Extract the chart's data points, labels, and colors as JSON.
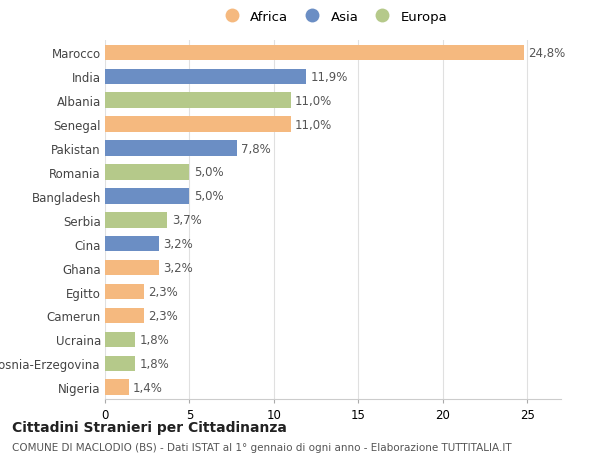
{
  "countries": [
    "Marocco",
    "India",
    "Albania",
    "Senegal",
    "Pakistan",
    "Romania",
    "Bangladesh",
    "Serbia",
    "Cina",
    "Ghana",
    "Egitto",
    "Camerun",
    "Ucraina",
    "Bosnia-Erzegovina",
    "Nigeria"
  ],
  "values": [
    24.8,
    11.9,
    11.0,
    11.0,
    7.8,
    5.0,
    5.0,
    3.7,
    3.2,
    3.2,
    2.3,
    2.3,
    1.8,
    1.8,
    1.4
  ],
  "labels": [
    "24,8%",
    "11,9%",
    "11,0%",
    "11,0%",
    "7,8%",
    "5,0%",
    "5,0%",
    "3,7%",
    "3,2%",
    "3,2%",
    "2,3%",
    "2,3%",
    "1,8%",
    "1,8%",
    "1,4%"
  ],
  "continents": [
    "Africa",
    "Asia",
    "Europa",
    "Africa",
    "Asia",
    "Europa",
    "Asia",
    "Europa",
    "Asia",
    "Africa",
    "Africa",
    "Africa",
    "Europa",
    "Europa",
    "Africa"
  ],
  "colors": {
    "Africa": "#F5B97F",
    "Asia": "#6B8EC4",
    "Europa": "#B5C98A"
  },
  "xlim": [
    0,
    27
  ],
  "xticks": [
    0,
    5,
    10,
    15,
    20,
    25
  ],
  "title": "Cittadini Stranieri per Cittadinanza",
  "subtitle": "COMUNE DI MACLODIO (BS) - Dati ISTAT al 1° gennaio di ogni anno - Elaborazione TUTTITALIA.IT",
  "bg_color": "#ffffff",
  "grid_color": "#e0e0e0",
  "bar_height": 0.65,
  "label_fontsize": 8.5,
  "tick_fontsize": 8.5,
  "title_fontsize": 10,
  "subtitle_fontsize": 7.5
}
